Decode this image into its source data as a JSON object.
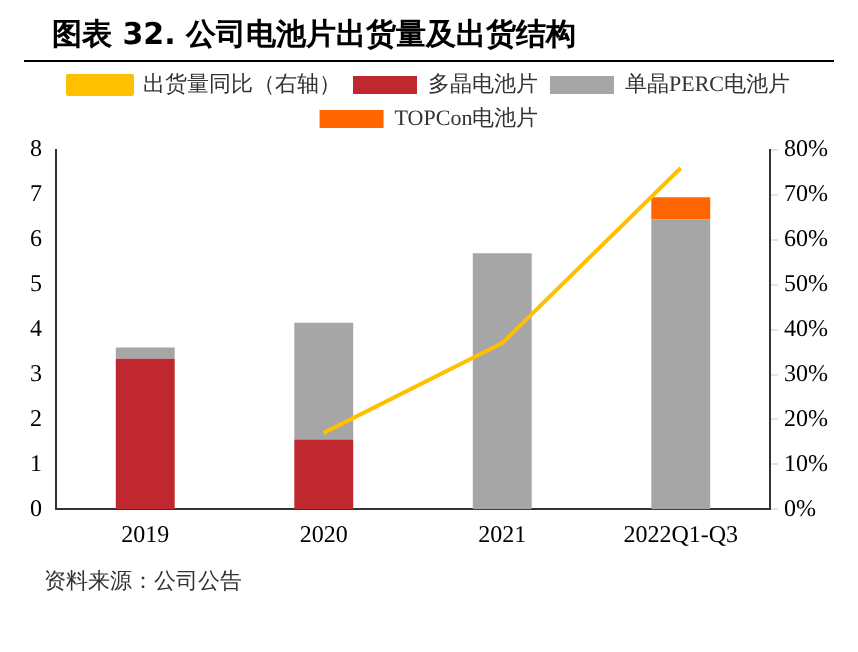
{
  "chart_data": {
    "type": "bar",
    "title": "图表 32. 公司电池片出货量及出货结构",
    "categories": [
      "2019",
      "2020",
      "2021",
      "2022Q1-Q3"
    ],
    "stacked": true,
    "series": [
      {
        "name": "多晶电池片",
        "color": "#c0282f",
        "values": [
          3.35,
          1.55,
          null,
          null
        ]
      },
      {
        "name": "单晶PERC电池片",
        "color": "#a6a6a6",
        "values": [
          0.25,
          2.6,
          5.7,
          6.45
        ]
      },
      {
        "name": "TOPCon电池片",
        "color": "#ff6600",
        "values": [
          null,
          null,
          null,
          0.5
        ]
      },
      {
        "name": "出货量同比（右轴）",
        "type": "line",
        "axis": "y2",
        "color": "#ffc000",
        "values": [
          null,
          17,
          37,
          76
        ]
      }
    ],
    "ylim": [
      0,
      8
    ],
    "yticks": [
      0,
      1,
      2,
      3,
      4,
      5,
      6,
      7,
      8
    ],
    "y2lim": [
      0,
      80
    ],
    "y2ticks": [
      {
        "value": 0,
        "label": "0%"
      },
      {
        "value": 10,
        "label": "10%"
      },
      {
        "value": 20,
        "label": "20%"
      },
      {
        "value": 30,
        "label": "30%"
      },
      {
        "value": 40,
        "label": "40%"
      },
      {
        "value": 50,
        "label": "50%"
      },
      {
        "value": 60,
        "label": "60%"
      },
      {
        "value": 70,
        "label": "70%"
      },
      {
        "value": 80,
        "label": "80%"
      }
    ],
    "grid": false,
    "legend": "top",
    "marker": "none",
    "annotations": [
      "资料来源：公司公告"
    ]
  }
}
